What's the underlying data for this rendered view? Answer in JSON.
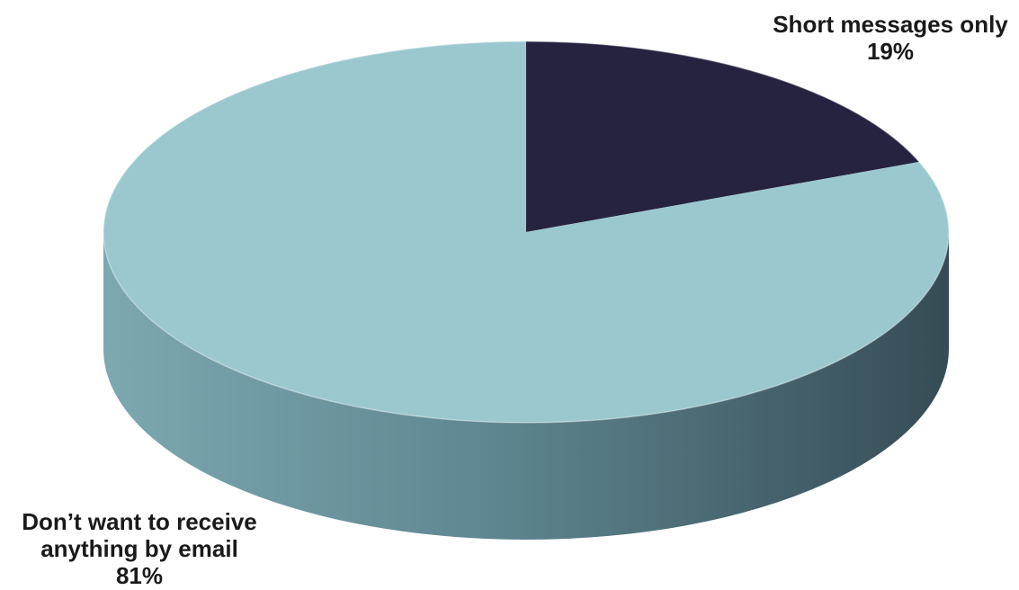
{
  "chart_data": {
    "type": "pie",
    "style": "3d",
    "title": "",
    "slices": [
      {
        "label": "Short messages only",
        "value": 19,
        "value_label": "19%",
        "color": "#262340"
      },
      {
        "label": "Don’t want to receive anything by email",
        "label_lines": [
          "Don’t want to receive",
          "anything by email"
        ],
        "value": 81,
        "value_label": "81%",
        "color": "#9BC8CF"
      }
    ],
    "legend": "none"
  }
}
